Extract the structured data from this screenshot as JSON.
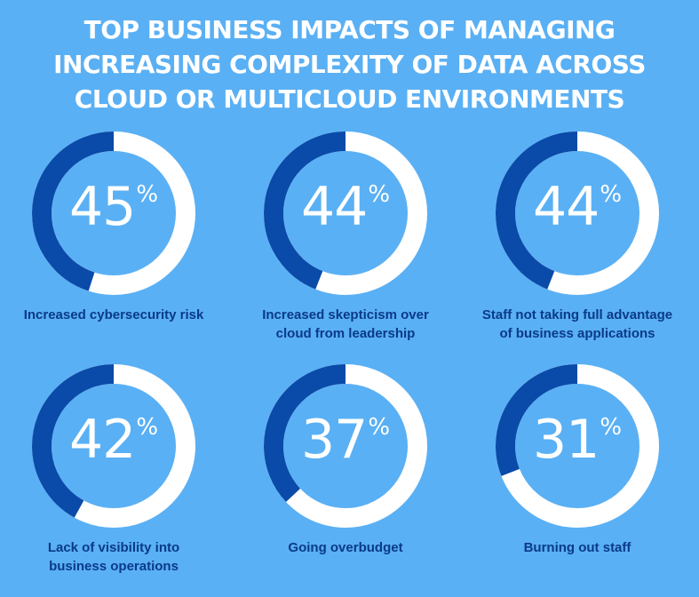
{
  "title_lines": [
    "TOP BUSINESS IMPACTS OF MANAGING",
    "INCREASING COMPLEXITY OF DATA ACROSS",
    "CLOUD OR MULTICLOUD ENVIRONMENTS"
  ],
  "colors": {
    "background": "#5ab0f4",
    "ring_filled": "#0a4aa8",
    "ring_remaining": "#ffffff",
    "label_text": "#0a3a8a"
  },
  "chart_data": {
    "type": "pie",
    "title": "TOP BUSINESS IMPACTS OF MANAGING INCREASING COMPLEXITY OF DATA ACROSS CLOUD OR MULTICLOUD ENVIRONMENTS",
    "unit": "%",
    "items": [
      {
        "value": 45,
        "display": "45",
        "label_lines": [
          "Increased cybersecurity risk"
        ]
      },
      {
        "value": 44,
        "display": "44",
        "label_lines": [
          "Increased skepticism over",
          "cloud from leadership"
        ]
      },
      {
        "value": 44,
        "display": "44",
        "label_lines": [
          "Staff not taking full advantage",
          "of business applications"
        ]
      },
      {
        "value": 42,
        "display": "42",
        "label_lines": [
          "Lack of visibility into",
          "business operations"
        ]
      },
      {
        "value": 37,
        "display": "37",
        "label_lines": [
          "Going overbudget"
        ]
      },
      {
        "value": 31,
        "display": "31",
        "label_lines": [
          "Burning out staff"
        ]
      }
    ]
  }
}
